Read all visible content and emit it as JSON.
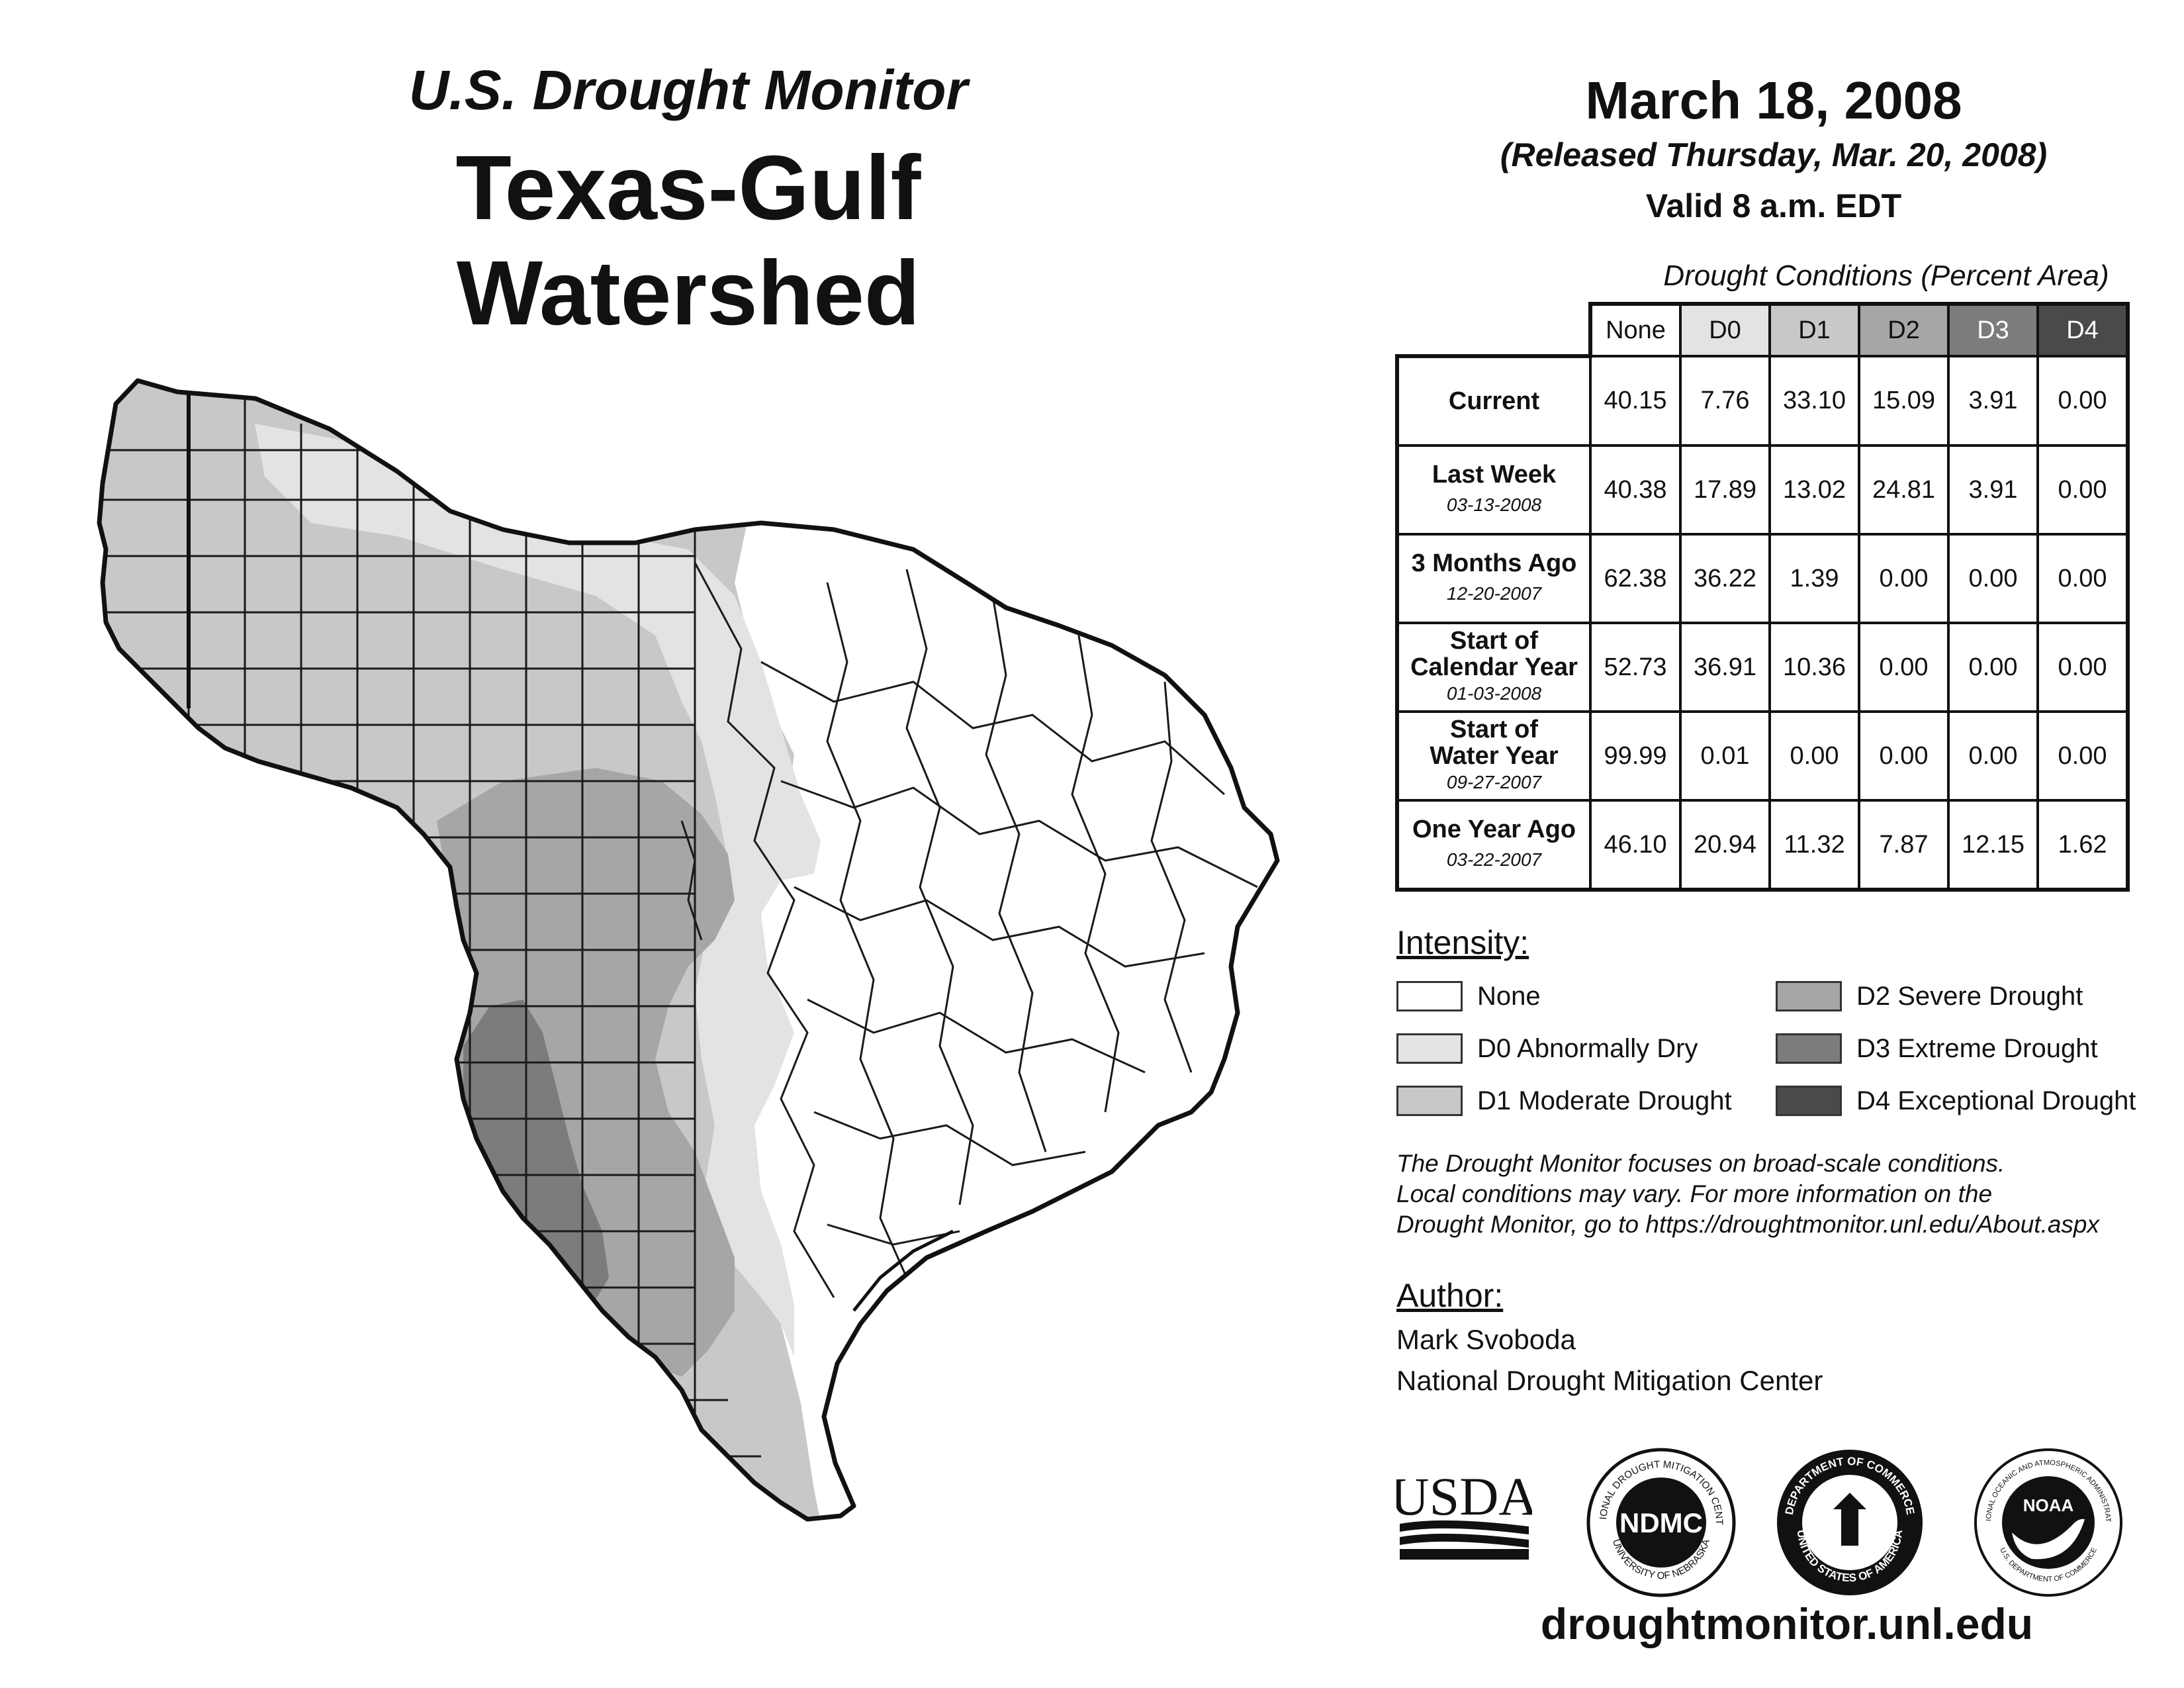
{
  "header": {
    "subtitle": "U.S. Drought Monitor",
    "title": "Texas-Gulf Watershed",
    "date": "March 18, 2008",
    "released": "(Released Thursday, Mar. 20, 2008)",
    "valid": "Valid 8 a.m. EDT"
  },
  "table": {
    "caption": "Drought Conditions (Percent Area)",
    "columns": [
      "None",
      "D0",
      "D1",
      "D2",
      "D3",
      "D4"
    ],
    "column_colors": [
      "#ffffff",
      "#e3e3e3",
      "#c8c8c8",
      "#a6a6a6",
      "#7c7c7c",
      "#4a4a4a"
    ],
    "column_text_colors": [
      "#111111",
      "#111111",
      "#111111",
      "#111111",
      "#ffffff",
      "#ffffff"
    ],
    "rows": [
      {
        "label": "Current",
        "label2": "",
        "date": "",
        "values": [
          "40.15",
          "7.76",
          "33.10",
          "15.09",
          "3.91",
          "0.00"
        ]
      },
      {
        "label": "Last Week",
        "label2": "",
        "date": "03-13-2008",
        "values": [
          "40.38",
          "17.89",
          "13.02",
          "24.81",
          "3.91",
          "0.00"
        ]
      },
      {
        "label": "3 Months Ago",
        "label2": "",
        "date": "12-20-2007",
        "values": [
          "62.38",
          "36.22",
          "1.39",
          "0.00",
          "0.00",
          "0.00"
        ]
      },
      {
        "label": "Start of",
        "label2": "Calendar Year",
        "date": "01-03-2008",
        "values": [
          "52.73",
          "36.91",
          "10.36",
          "0.00",
          "0.00",
          "0.00"
        ]
      },
      {
        "label": "Start of",
        "label2": "Water Year",
        "date": "09-27-2007",
        "values": [
          "99.99",
          "0.01",
          "0.00",
          "0.00",
          "0.00",
          "0.00"
        ]
      },
      {
        "label": "One Year Ago",
        "label2": "",
        "date": "03-22-2007",
        "values": [
          "46.10",
          "20.94",
          "11.32",
          "7.87",
          "12.15",
          "1.62"
        ]
      }
    ]
  },
  "legend": {
    "heading": "Intensity:",
    "items": [
      {
        "label": "None",
        "color": "#ffffff"
      },
      {
        "label": "D0 Abnormally Dry",
        "color": "#e3e3e3"
      },
      {
        "label": "D1 Moderate Drought",
        "color": "#c8c8c8"
      },
      {
        "label": "D2 Severe Drought",
        "color": "#a6a6a6"
      },
      {
        "label": "D3 Extreme Drought",
        "color": "#7c7c7c"
      },
      {
        "label": "D4 Exceptional Drought",
        "color": "#4a4a4a"
      }
    ]
  },
  "note": {
    "line1": "The Drought Monitor focuses on broad-scale conditions.",
    "line2": "Local conditions may vary. For more information on the",
    "line3": "Drought Monitor, go to https://droughtmonitor.unl.edu/About.aspx"
  },
  "author": {
    "heading": "Author:",
    "name": "Mark Svoboda",
    "org": "National Drought Mitigation Center"
  },
  "logos": {
    "usda": "USDA",
    "ndmc": "NDMC",
    "ndmc_ring_top": "NATIONAL DROUGHT MITIGATION CENTER",
    "ndmc_ring_bottom": "UNIVERSITY OF NEBRASKA",
    "doc_ring_top": "DEPARTMENT OF COMMERCE",
    "doc_ring_bottom": "UNITED STATES OF AMERICA",
    "noaa": "NOAA",
    "noaa_ring_top": "NATIONAL OCEANIC AND ATMOSPHERIC ADMINISTRATION",
    "noaa_ring_bottom": "U.S. DEPARTMENT OF COMMERCE"
  },
  "website": "droughtmonitor.unl.edu"
}
